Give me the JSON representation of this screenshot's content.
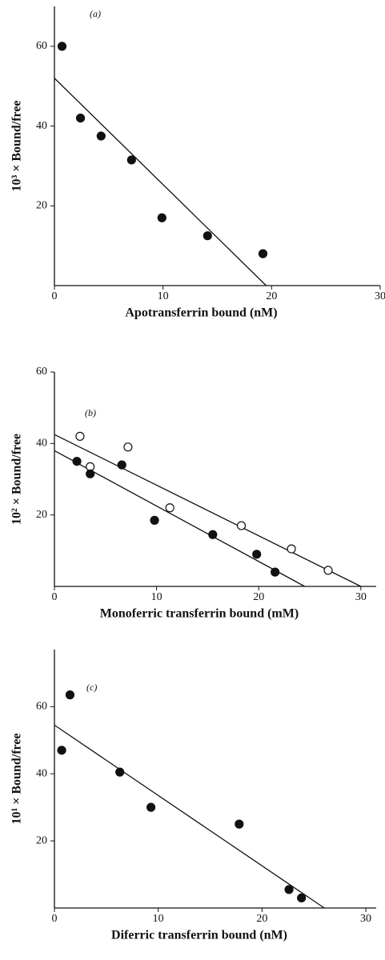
{
  "chart_data": [
    {
      "type": "scatter",
      "panel_label": "(a)",
      "x_label": "Apotransferrin bound (nM)",
      "y_label": "10³ × Bound/free",
      "xlim": [
        0,
        30
      ],
      "ylim": [
        0,
        70
      ],
      "xticks": [
        0,
        10,
        20,
        30
      ],
      "yticks": [
        20,
        40,
        60
      ],
      "series": [
        {
          "marker": "filled",
          "color": "#111111",
          "x": [
            0.7,
            2.4,
            4.3,
            7.1,
            9.9,
            14.1,
            19.2
          ],
          "values": [
            60,
            42,
            37.5,
            31.5,
            17,
            12.5,
            8
          ]
        }
      ],
      "fit_lines": [
        {
          "x": [
            0,
            19.5
          ],
          "y": [
            52,
            0
          ]
        }
      ]
    },
    {
      "type": "scatter",
      "panel_label": "(b)",
      "x_label": "Monoferric transferrin bound (mM)",
      "y_label": "10² × Bound/free",
      "xlim": [
        0,
        31.5
      ],
      "ylim": [
        0,
        60
      ],
      "xticks": [
        0,
        10,
        20,
        30
      ],
      "yticks": [
        20,
        40,
        60
      ],
      "series": [
        {
          "marker": "open",
          "color": "#111111",
          "x": [
            2.5,
            3.5,
            7.2,
            11.3,
            18.3,
            23.2,
            26.8
          ],
          "values": [
            42,
            33.5,
            39,
            22,
            17,
            10.5,
            4.5
          ]
        },
        {
          "marker": "filled",
          "color": "#111111",
          "x": [
            2.2,
            3.5,
            6.6,
            9.8,
            15.5,
            19.8,
            21.6
          ],
          "values": [
            35,
            31.5,
            34,
            18.5,
            14.5,
            9,
            4
          ]
        }
      ],
      "fit_lines": [
        {
          "x": [
            0,
            30
          ],
          "y": [
            42.5,
            0
          ]
        },
        {
          "x": [
            0,
            24.5
          ],
          "y": [
            38,
            0
          ]
        }
      ]
    },
    {
      "type": "scatter",
      "panel_label": "(c)",
      "x_label": "Diferric transferrin bound (nM)",
      "y_label": "10¹ × Bound/free",
      "xlim": [
        0,
        31
      ],
      "ylim": [
        0,
        77
      ],
      "xticks": [
        0,
        10,
        20,
        30
      ],
      "yticks": [
        20,
        40,
        60
      ],
      "series": [
        {
          "marker": "filled",
          "color": "#111111",
          "x": [
            0.7,
            1.5,
            6.3,
            9.3,
            17.8,
            22.6,
            23.8
          ],
          "values": [
            47,
            63.5,
            40.5,
            30,
            25,
            5.5,
            3
          ]
        }
      ],
      "fit_lines": [
        {
          "x": [
            0,
            26
          ],
          "y": [
            54.5,
            0
          ]
        }
      ]
    }
  ]
}
